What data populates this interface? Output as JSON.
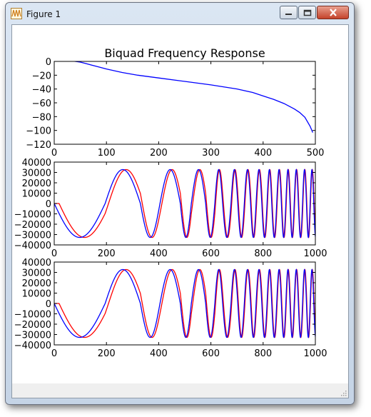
{
  "window": {
    "title": "Figure 1",
    "app_icon": "matplotlib-wave-icon",
    "controls": [
      "minimize-icon",
      "maximize-icon",
      "close-icon"
    ]
  },
  "colors": {
    "blue": "#0000ff",
    "red": "#ff0000"
  },
  "chart_data": [
    {
      "type": "line",
      "title": "Biquad Frequency Response",
      "xlabel": "",
      "ylabel": "",
      "xlim": [
        0,
        500
      ],
      "ylim": [
        -120,
        0
      ],
      "xticks": [
        "0",
        "100",
        "200",
        "300",
        "400",
        "500"
      ],
      "yticks": [
        "0",
        "−20",
        "−40",
        "−60",
        "−80",
        "−100",
        "−120"
      ],
      "grid": false,
      "series": [
        {
          "color": "#0000ff",
          "x": [
            20,
            30,
            40,
            50,
            60,
            80,
            100,
            130,
            160,
            200,
            250,
            300,
            350,
            380,
            400,
            420,
            440,
            460,
            470,
            480,
            490,
            495
          ],
          "values": [
            3,
            1,
            0,
            -1,
            -3,
            -7,
            -11,
            -16,
            -20,
            -24,
            -29,
            -34,
            -40,
            -45,
            -50,
            -55,
            -61,
            -69,
            -74,
            -81,
            -94,
            -103
          ]
        }
      ]
    },
    {
      "type": "line",
      "title": "",
      "xlabel": "",
      "ylabel": "",
      "xlim": [
        0,
        1000
      ],
      "ylim": [
        -40000,
        40000
      ],
      "xticks": [
        "0",
        "200",
        "400",
        "600",
        "800",
        "1000"
      ],
      "yticks": [
        "40000",
        "30000",
        "20000",
        "10000",
        "0",
        "−10000",
        "−20000",
        "−30000",
        "−40000"
      ],
      "grid": false,
      "signal": "chirp",
      "amplitude": 32767,
      "zero_crossings": [
        0,
        195,
        330,
        405,
        483,
        525,
        580,
        615,
        645,
        677,
        703,
        728,
        752,
        773,
        795,
        815,
        833,
        852,
        870,
        887,
        903,
        919,
        935,
        951,
        966,
        980,
        994
      ],
      "series": [
        {
          "color": "#ff0000",
          "phase_lag": 0.3
        },
        {
          "color": "#0000ff",
          "phase_lag": 0
        }
      ]
    },
    {
      "type": "line",
      "title": "",
      "xlabel": "",
      "ylabel": "",
      "xlim": [
        0,
        1000
      ],
      "ylim": [
        -40000,
        40000
      ],
      "xticks": [
        "0",
        "200",
        "400",
        "600",
        "800",
        "1000"
      ],
      "yticks": [
        "40000",
        "30000",
        "20000",
        "10000",
        "0",
        "−10000",
        "−20000",
        "−30000",
        "−40000"
      ],
      "grid": false,
      "signal": "chirp",
      "amplitude": 32767,
      "zero_crossings": [
        0,
        195,
        330,
        405,
        483,
        525,
        580,
        615,
        645,
        677,
        703,
        728,
        752,
        773,
        795,
        815,
        833,
        852,
        870,
        887,
        903,
        919,
        935,
        951,
        966,
        980,
        994
      ],
      "series": [
        {
          "color": "#ff0000",
          "phase_lag": 0.3
        },
        {
          "color": "#0000ff",
          "phase_lag": 0
        }
      ]
    }
  ]
}
